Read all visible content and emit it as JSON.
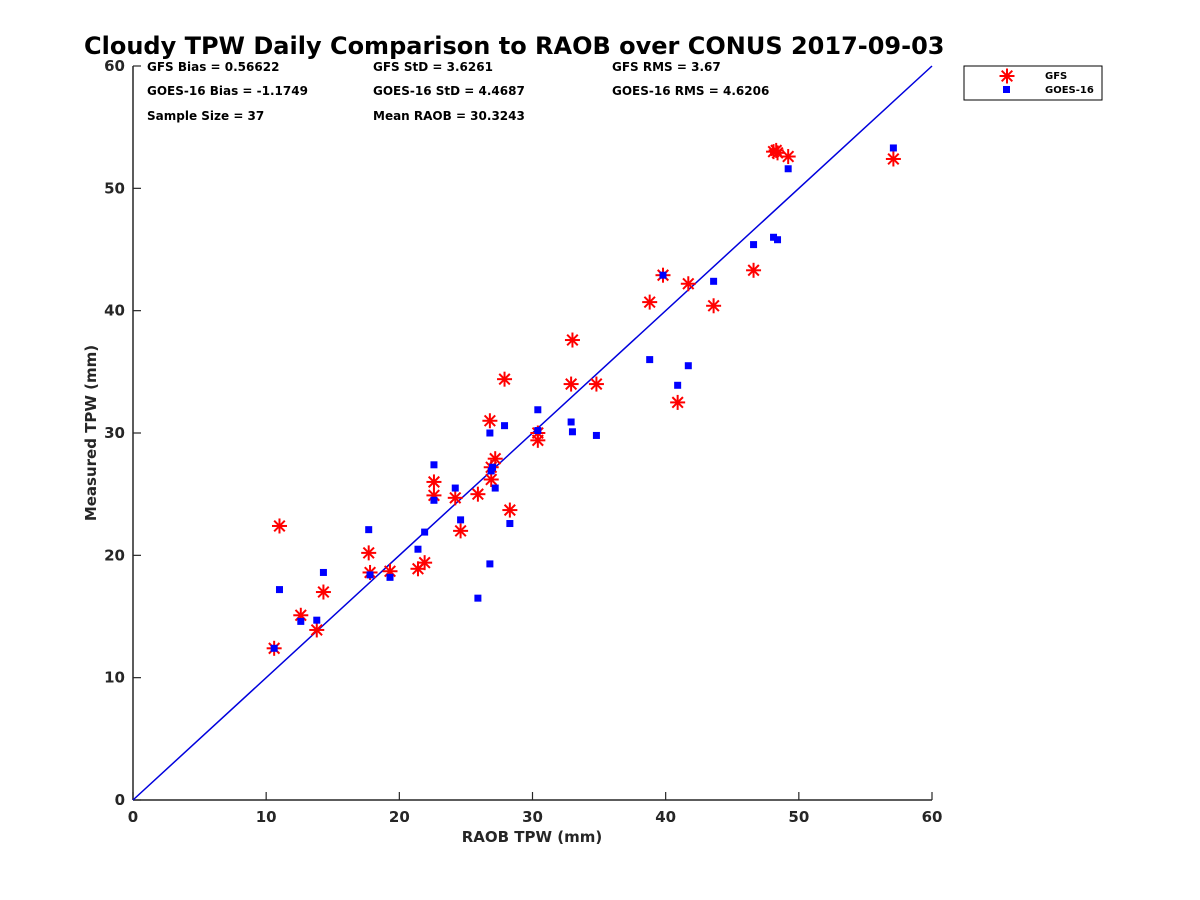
{
  "chart_data": {
    "type": "scatter",
    "title": "Cloudy TPW Daily Comparison to RAOB over CONUS 2017-09-03",
    "xlabel": "RAOB TPW (mm)",
    "ylabel": "Measured TPW (mm)",
    "xlim": [
      0,
      60
    ],
    "ylim": [
      0,
      60
    ],
    "xticks": [
      "0",
      "10",
      "20",
      "30",
      "40",
      "50",
      "60"
    ],
    "yticks": [
      "0",
      "10",
      "20",
      "30",
      "40",
      "50",
      "60"
    ],
    "grid": false,
    "legend_position": "top-right, outside plot area",
    "stats": [
      {
        "text": "GFS Bias = 0.56622"
      },
      {
        "text": "GFS StD = 3.6261"
      },
      {
        "text": "GFS RMS = 3.67"
      },
      {
        "text": "GOES-16 Bias = -1.1749"
      },
      {
        "text": "GOES-16 StD = 4.4687"
      },
      {
        "text": "GOES-16 RMS = 4.6206"
      },
      {
        "text": "Sample Size = 37"
      },
      {
        "text": "Mean RAOB = 30.3243"
      }
    ],
    "reference_line": {
      "type": "one-to-one",
      "x": [
        0,
        60
      ],
      "y": [
        0,
        60
      ],
      "color": "#0000dd"
    },
    "series": [
      {
        "name": "GFS",
        "marker": "asterisk",
        "color": "#ff0000",
        "points": [
          [
            10.6,
            12.4
          ],
          [
            11.0,
            22.4
          ],
          [
            12.6,
            15.1
          ],
          [
            13.8,
            13.9
          ],
          [
            14.3,
            17.0
          ],
          [
            17.7,
            20.2
          ],
          [
            17.8,
            18.6
          ],
          [
            19.3,
            18.7
          ],
          [
            21.4,
            18.9
          ],
          [
            21.9,
            19.4
          ],
          [
            22.6,
            24.9
          ],
          [
            22.6,
            26.0
          ],
          [
            24.2,
            24.7
          ],
          [
            24.6,
            22.0
          ],
          [
            25.9,
            25.0
          ],
          [
            26.8,
            31.0
          ],
          [
            26.9,
            26.2
          ],
          [
            26.9,
            27.2
          ],
          [
            27.2,
            27.9
          ],
          [
            27.9,
            34.4
          ],
          [
            28.3,
            23.7
          ],
          [
            30.4,
            29.4
          ],
          [
            30.4,
            30.0
          ],
          [
            32.9,
            34.0
          ],
          [
            33.0,
            37.6
          ],
          [
            34.8,
            34.0
          ],
          [
            38.8,
            40.7
          ],
          [
            39.8,
            42.9
          ],
          [
            40.9,
            32.5
          ],
          [
            41.7,
            42.2
          ],
          [
            43.6,
            40.4
          ],
          [
            46.6,
            43.3
          ],
          [
            48.1,
            53.0
          ],
          [
            48.3,
            53.1
          ],
          [
            48.4,
            52.9
          ],
          [
            49.2,
            52.6
          ],
          [
            57.1,
            52.4
          ]
        ]
      },
      {
        "name": "GOES-16",
        "marker": "square",
        "color": "#0000ff",
        "points": [
          [
            10.6,
            12.4
          ],
          [
            11.0,
            17.2
          ],
          [
            12.6,
            14.6
          ],
          [
            13.8,
            14.7
          ],
          [
            14.3,
            18.6
          ],
          [
            17.7,
            22.1
          ],
          [
            17.8,
            18.4
          ],
          [
            19.3,
            18.2
          ],
          [
            21.4,
            20.5
          ],
          [
            21.9,
            21.9
          ],
          [
            22.6,
            24.5
          ],
          [
            22.6,
            27.4
          ],
          [
            24.2,
            25.5
          ],
          [
            24.6,
            22.9
          ],
          [
            25.9,
            16.5
          ],
          [
            26.8,
            30.0
          ],
          [
            26.8,
            19.3
          ],
          [
            26.9,
            26.9
          ],
          [
            27.0,
            27.2
          ],
          [
            27.2,
            25.5
          ],
          [
            27.9,
            30.6
          ],
          [
            28.3,
            22.6
          ],
          [
            30.4,
            31.9
          ],
          [
            30.4,
            30.2
          ],
          [
            32.9,
            30.9
          ],
          [
            33.0,
            30.1
          ],
          [
            34.8,
            29.8
          ],
          [
            38.8,
            36.0
          ],
          [
            39.8,
            42.9
          ],
          [
            40.9,
            33.9
          ],
          [
            41.7,
            35.5
          ],
          [
            43.6,
            42.4
          ],
          [
            46.6,
            45.4
          ],
          [
            48.1,
            46.0
          ],
          [
            48.4,
            45.8
          ],
          [
            49.2,
            51.6
          ],
          [
            57.1,
            53.3
          ]
        ]
      }
    ]
  }
}
